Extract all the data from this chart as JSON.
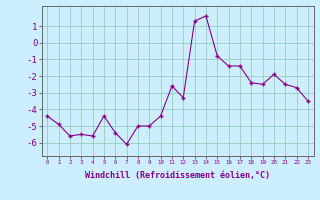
{
  "x": [
    0,
    1,
    2,
    3,
    4,
    5,
    6,
    7,
    8,
    9,
    10,
    11,
    12,
    13,
    14,
    15,
    16,
    17,
    18,
    19,
    20,
    21,
    22,
    23
  ],
  "y": [
    -4.4,
    -4.9,
    -5.6,
    -5.5,
    -5.6,
    -4.4,
    -5.4,
    -6.1,
    -5.0,
    -5.0,
    -4.4,
    -2.6,
    -3.3,
    1.3,
    1.6,
    -0.8,
    -1.4,
    -1.4,
    -2.4,
    -2.5,
    -1.9,
    -2.5,
    -2.7,
    -3.5
  ],
  "line_color": "#880088",
  "marker_color": "#880088",
  "bg_color": "#cceeff",
  "grid_color": "#99ccbb",
  "xlabel": "Windchill (Refroidissement éolien,°C)",
  "xlim": [
    -0.5,
    23.5
  ],
  "ylim": [
    -6.8,
    2.2
  ],
  "yticks": [
    1,
    0,
    -1,
    -2,
    -3,
    -4,
    -5,
    -6
  ],
  "ytick_labels": [
    "1",
    "0",
    "-1",
    "-2",
    "-3",
    "-4",
    "-5",
    "-6"
  ],
  "xtick_labels": [
    "0",
    "1",
    "2",
    "3",
    "4",
    "5",
    "6",
    "7",
    "8",
    "9",
    "10",
    "11",
    "12",
    "13",
    "14",
    "15",
    "16",
    "17",
    "18",
    "19",
    "20",
    "21",
    "22",
    "23"
  ]
}
